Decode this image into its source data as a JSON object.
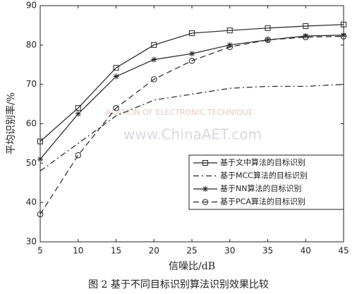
{
  "chart_data": {
    "type": "line",
    "xlabel": "信噪比/dB",
    "ylabel": "平均识别率/%",
    "caption": "图 2  基于不同目标识别算法识别效果比较",
    "watermark": [
      "ACATION OF ELECTRONIC TECHNIQUE",
      "www.ChinaAET.com"
    ],
    "x": [
      5,
      10,
      15,
      20,
      25,
      30,
      35,
      40,
      45
    ],
    "xlim": [
      5,
      45
    ],
    "xticks": [
      5,
      10,
      15,
      20,
      25,
      30,
      35,
      40,
      45
    ],
    "ylim": [
      30,
      90
    ],
    "yticks": [
      30,
      40,
      50,
      60,
      70,
      80,
      90
    ],
    "legend": "lower right",
    "series": [
      {
        "name": "基于文中算法的目标识别",
        "color": "#222222",
        "marker": "square",
        "dash": "solid",
        "values": [
          55.5,
          64,
          74.2,
          80,
          83,
          83.7,
          84.3,
          84.8,
          85.2
        ]
      },
      {
        "name": "基于MCC算法的目标识别",
        "color": "#222222",
        "marker": "none",
        "dash": "dashdot",
        "values": [
          48,
          55,
          62,
          66,
          67.5,
          69,
          69.5,
          69.5,
          70
        ]
      },
      {
        "name": "基于NN算法的目标识别",
        "color": "#222222",
        "marker": "star",
        "dash": "solid",
        "values": [
          51,
          62.5,
          72,
          76.3,
          77.8,
          80,
          81.3,
          82.3,
          82.5
        ]
      },
      {
        "name": "基于PCA算法的目标识别",
        "color": "#222222",
        "marker": "circle",
        "dash": "dashed",
        "values": [
          37,
          52,
          64,
          71.3,
          76,
          79.5,
          81.3,
          82,
          82.2
        ]
      }
    ]
  }
}
